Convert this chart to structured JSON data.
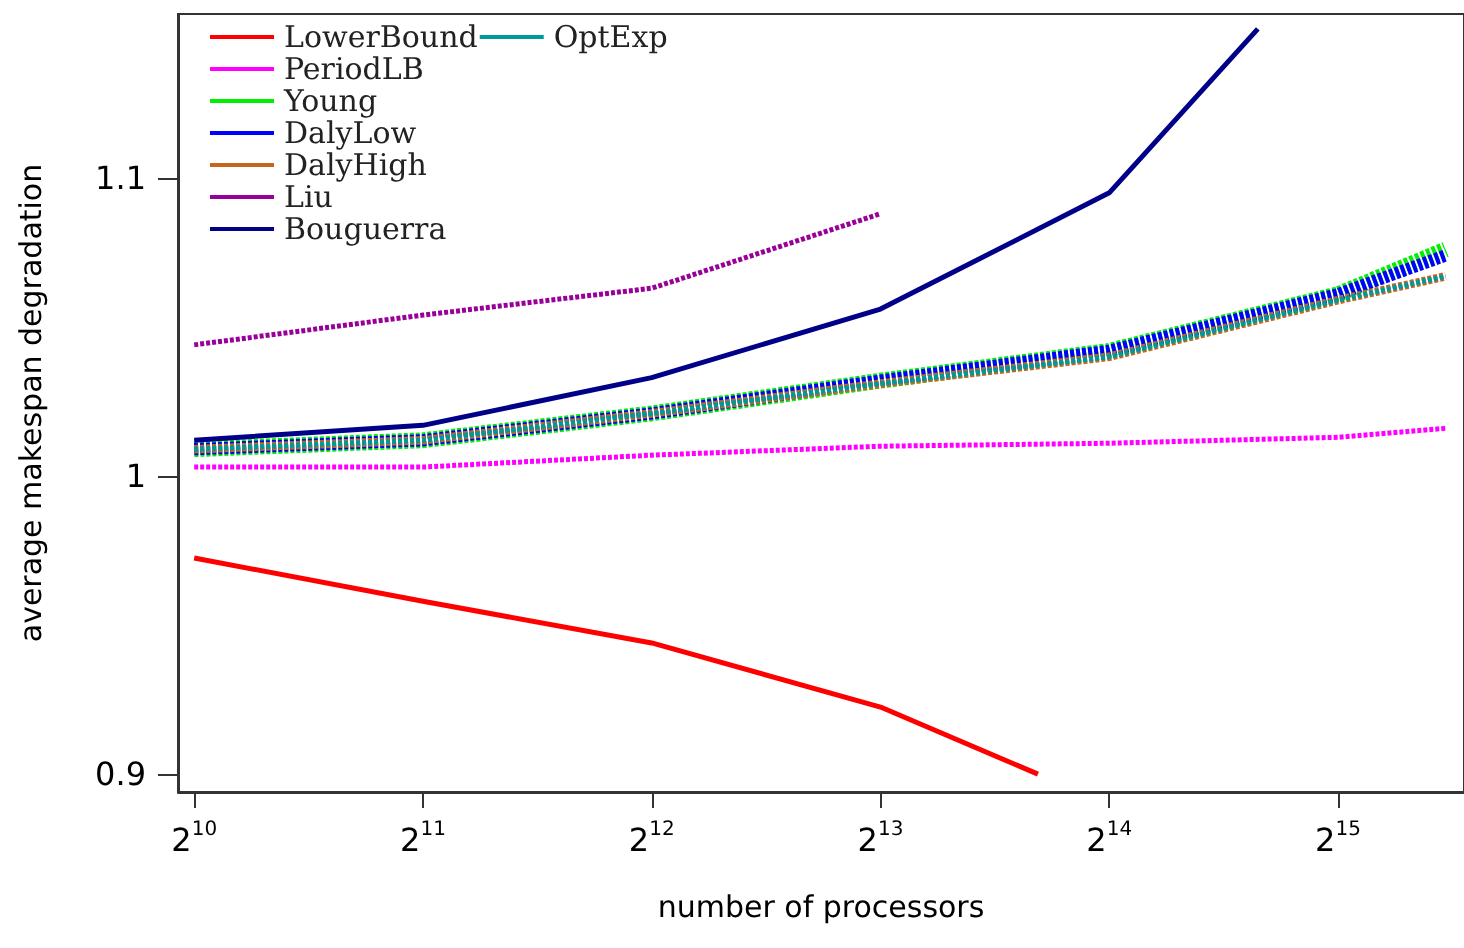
{
  "chart_data": {
    "type": "line",
    "xlabel": "number of processors",
    "ylabel": "average makespan degradation",
    "log": "x",
    "xlim": [
      975,
      48000
    ],
    "ylim": [
      0.894,
      1.155
    ],
    "xticks": [
      {
        "value": 1024,
        "label": "2$^{10}$"
      },
      {
        "value": 2048,
        "label": "2$^{11}$"
      },
      {
        "value": 4096,
        "label": "2$^{12}$"
      },
      {
        "value": 8192,
        "label": "2$^{13}$"
      },
      {
        "value": 16384,
        "label": "2$^{14}$"
      },
      {
        "value": 32768,
        "label": "2$^{15}$"
      }
    ],
    "yticks": [
      0.9,
      1,
      1.1
    ],
    "grid": false,
    "legend": "top left",
    "marker": "none",
    "series": [
      {
        "name": "LowerBound",
        "color": "#ff0000",
        "line_style": "solid",
        "x": [
          1024,
          2048,
          4096,
          8192,
          13200
        ],
        "values": [
          0.9725,
          0.958,
          0.944,
          0.9225,
          0.9
        ]
      },
      {
        "name": "PeriodLB",
        "color": "#ff00ff",
        "line_style": "dotted",
        "x": [
          1024,
          2048,
          4096,
          8192,
          16384,
          32768,
          45400
        ],
        "values": [
          1.003,
          1.003,
          1.007,
          1.01,
          1.011,
          1.013,
          1.016
        ]
      },
      {
        "name": "Young",
        "color": "#00ee00",
        "line_style": "dotted",
        "x": [
          1024,
          2048,
          4096,
          8192,
          16384,
          32768,
          45400
        ],
        "values": [
          1.009,
          1.012,
          1.021,
          1.032,
          1.042,
          1.061,
          1.076
        ]
      },
      {
        "name": "DalyLow",
        "color": "#0000ff",
        "line_style": "dotted",
        "x": [
          1024,
          2048,
          4096,
          8192,
          16384,
          32768,
          45400
        ],
        "values": [
          1.009,
          1.012,
          1.021,
          1.032,
          1.042,
          1.061,
          1.074
        ]
      },
      {
        "name": "DalyHigh",
        "color": "#c8641e",
        "line_style": "dotted",
        "x": [
          1024,
          2048,
          4096,
          8192,
          16384,
          32768,
          45400
        ],
        "values": [
          1.009,
          1.012,
          1.021,
          1.031,
          1.04,
          1.059,
          1.067
        ]
      },
      {
        "name": "Liu",
        "color": "#990099",
        "line_style": "dotted",
        "x": [
          1024,
          2048,
          4096,
          8192
        ],
        "values": [
          1.044,
          1.054,
          1.063,
          1.088
        ]
      },
      {
        "name": "Bouguerra",
        "color": "#000088",
        "line_style": "solid",
        "x": [
          1024,
          2048,
          4096,
          8192,
          16384,
          25700
        ],
        "values": [
          1.012,
          1.017,
          1.033,
          1.056,
          1.095,
          1.15
        ]
      },
      {
        "name": "OptExp",
        "color": "#009999",
        "line_style": "dotted",
        "x": [
          1024,
          2048,
          4096,
          8192,
          16384,
          32768,
          45400
        ],
        "values": [
          1.009,
          1.012,
          1.021,
          1.031,
          1.04,
          1.059,
          1.067
        ]
      }
    ]
  }
}
